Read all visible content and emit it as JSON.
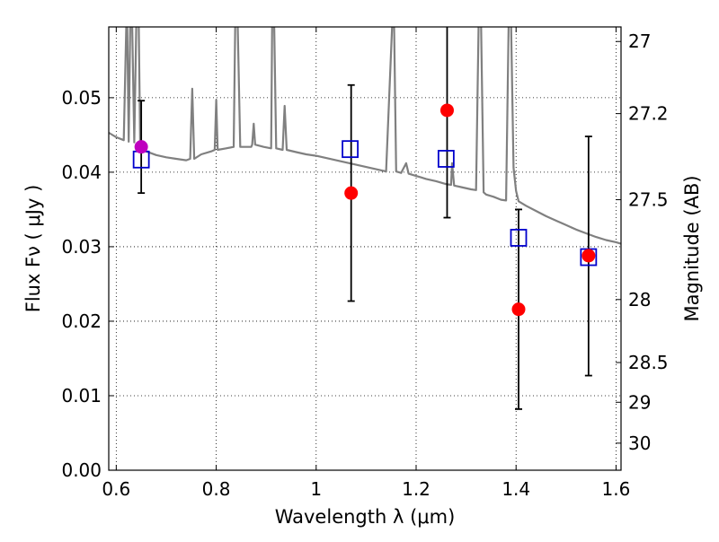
{
  "chart_data": {
    "type": "scatter",
    "xlabel": "Wavelength  λ (μm)",
    "ylabel": "Flux  Fν  ( μJy )",
    "ylabel_right": "Magnitude (AB)",
    "xlim": [
      0.585,
      1.61
    ],
    "ylim": [
      0.0,
      0.0595
    ],
    "x_ticks": [
      {
        "value": 0.6,
        "label": "0.6"
      },
      {
        "value": 0.8,
        "label": "0.8"
      },
      {
        "value": 1.0,
        "label": "1"
      },
      {
        "value": 1.2,
        "label": "1.2"
      },
      {
        "value": 1.4,
        "label": "1.4"
      },
      {
        "value": 1.6,
        "label": "1.6"
      }
    ],
    "y_ticks": [
      {
        "value": 0.0,
        "label": "0.00"
      },
      {
        "value": 0.01,
        "label": "0.01"
      },
      {
        "value": 0.02,
        "label": "0.02"
      },
      {
        "value": 0.03,
        "label": "0.03"
      },
      {
        "value": 0.04,
        "label": "0.04"
      },
      {
        "value": 0.05,
        "label": "0.05"
      }
    ],
    "mag_ticks": [
      {
        "mag": 27,
        "label": "27"
      },
      {
        "mag": 27.2,
        "label": "27.2"
      },
      {
        "mag": 27.5,
        "label": "27.5"
      },
      {
        "mag": 28,
        "label": "28"
      },
      {
        "mag": 28.5,
        "label": "28.5"
      },
      {
        "mag": 29,
        "label": "29"
      },
      {
        "mag": 30,
        "label": "30"
      }
    ],
    "grid": true,
    "colors": {
      "model": "#808080",
      "observed": "#ff0000",
      "observed_first": "#bf00bf",
      "synthetic": "#0000cc",
      "errorbar": "#000000"
    },
    "series": [
      {
        "name": "model spectrum",
        "style": "line",
        "points": [
          [
            0.585,
            0.0453
          ],
          [
            0.6,
            0.0447
          ],
          [
            0.615,
            0.0443
          ],
          [
            0.62,
            0.0596
          ],
          [
            0.622,
            0.0596
          ],
          [
            0.625,
            0.0441
          ],
          [
            0.628,
            0.0596
          ],
          [
            0.632,
            0.0596
          ],
          [
            0.636,
            0.044
          ],
          [
            0.64,
            0.0596
          ],
          [
            0.645,
            0.0596
          ],
          [
            0.648,
            0.0434
          ],
          [
            0.66,
            0.0428
          ],
          [
            0.68,
            0.0423
          ],
          [
            0.7,
            0.042
          ],
          [
            0.72,
            0.0418
          ],
          [
            0.74,
            0.0416
          ],
          [
            0.748,
            0.0418
          ],
          [
            0.752,
            0.0512
          ],
          [
            0.756,
            0.0418
          ],
          [
            0.77,
            0.0424
          ],
          [
            0.79,
            0.0428
          ],
          [
            0.797,
            0.043
          ],
          [
            0.8,
            0.0497
          ],
          [
            0.803,
            0.043
          ],
          [
            0.82,
            0.0432
          ],
          [
            0.835,
            0.0434
          ],
          [
            0.838,
            0.0596
          ],
          [
            0.843,
            0.0596
          ],
          [
            0.848,
            0.0434
          ],
          [
            0.86,
            0.0434
          ],
          [
            0.87,
            0.0434
          ],
          [
            0.872,
            0.0437
          ],
          [
            0.875,
            0.0465
          ],
          [
            0.878,
            0.0437
          ],
          [
            0.895,
            0.0434
          ],
          [
            0.91,
            0.0432
          ],
          [
            0.912,
            0.0596
          ],
          [
            0.916,
            0.0596
          ],
          [
            0.92,
            0.0432
          ],
          [
            0.933,
            0.043
          ],
          [
            0.937,
            0.0489
          ],
          [
            0.941,
            0.043
          ],
          [
            0.96,
            0.0427
          ],
          [
            0.98,
            0.0424
          ],
          [
            1.0,
            0.0422
          ],
          [
            1.02,
            0.0419
          ],
          [
            1.04,
            0.0416
          ],
          [
            1.06,
            0.0413
          ],
          [
            1.08,
            0.041
          ],
          [
            1.1,
            0.0407
          ],
          [
            1.12,
            0.0404
          ],
          [
            1.14,
            0.0401
          ],
          [
            1.152,
            0.0596
          ],
          [
            1.156,
            0.0596
          ],
          [
            1.16,
            0.0401
          ],
          [
            1.17,
            0.0399
          ],
          [
            1.18,
            0.0412
          ],
          [
            1.185,
            0.0398
          ],
          [
            1.2,
            0.0395
          ],
          [
            1.21,
            0.0393
          ],
          [
            1.22,
            0.0391
          ],
          [
            1.24,
            0.0388
          ],
          [
            1.26,
            0.0384
          ],
          [
            1.27,
            0.0383
          ],
          [
            1.272,
            0.0412
          ],
          [
            1.276,
            0.0382
          ],
          [
            1.29,
            0.038
          ],
          [
            1.31,
            0.0377
          ],
          [
            1.32,
            0.0376
          ],
          [
            1.325,
            0.0596
          ],
          [
            1.33,
            0.0596
          ],
          [
            1.335,
            0.0373
          ],
          [
            1.34,
            0.037
          ],
          [
            1.355,
            0.0367
          ],
          [
            1.37,
            0.0363
          ],
          [
            1.38,
            0.0362
          ],
          [
            1.385,
            0.0596
          ],
          [
            1.39,
            0.0596
          ],
          [
            1.395,
            0.0406
          ],
          [
            1.4,
            0.0375
          ],
          [
            1.405,
            0.0361
          ],
          [
            1.42,
            0.0355
          ],
          [
            1.44,
            0.0348
          ],
          [
            1.46,
            0.0341
          ],
          [
            1.48,
            0.0335
          ],
          [
            1.5,
            0.0329
          ],
          [
            1.52,
            0.0323
          ],
          [
            1.54,
            0.0318
          ],
          [
            1.56,
            0.0313
          ],
          [
            1.58,
            0.0309
          ],
          [
            1.6,
            0.0306
          ],
          [
            1.61,
            0.0304
          ]
        ]
      },
      {
        "name": "observed photometry",
        "style": "filled-circle",
        "points": [
          {
            "x": 0.65,
            "y": 0.0434,
            "yerr_low": 0.0372,
            "yerr_high": 0.0496
          },
          {
            "x": 1.07,
            "y": 0.0372,
            "yerr_low": 0.0227,
            "yerr_high": 0.0517
          },
          {
            "x": 1.262,
            "y": 0.0483,
            "yerr_low": 0.0339,
            "yerr_high": 0.0596
          },
          {
            "x": 1.405,
            "y": 0.0216,
            "yerr_low": 0.0082,
            "yerr_high": 0.035
          },
          {
            "x": 1.545,
            "y": 0.0288,
            "yerr_low": 0.0127,
            "yerr_high": 0.0448
          }
        ]
      },
      {
        "name": "synthetic model photometry",
        "style": "open-square",
        "points": [
          {
            "x": 0.65,
            "y": 0.0417
          },
          {
            "x": 1.068,
            "y": 0.0431
          },
          {
            "x": 1.26,
            "y": 0.0418
          },
          {
            "x": 1.405,
            "y": 0.0312
          },
          {
            "x": 1.545,
            "y": 0.0286
          }
        ]
      }
    ]
  }
}
